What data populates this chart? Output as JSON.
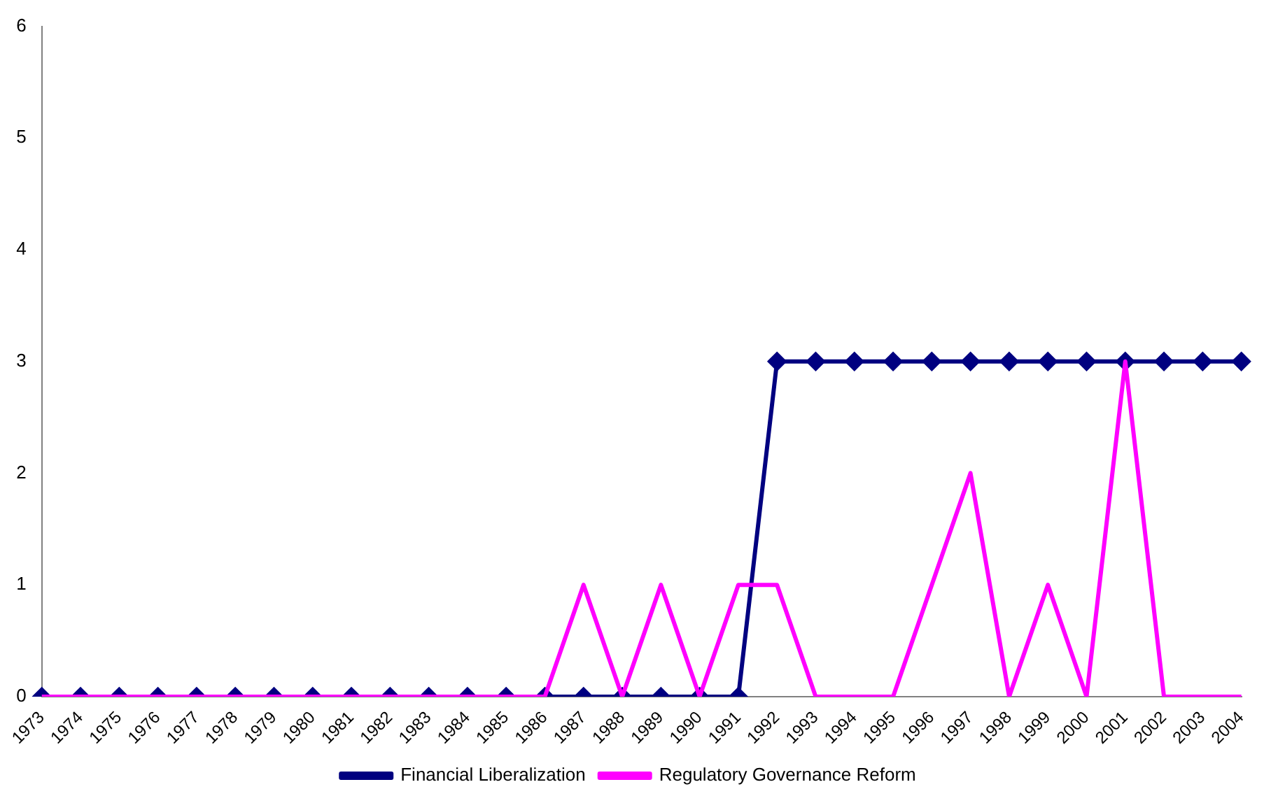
{
  "chart_data": {
    "type": "line",
    "categories": [
      "1973",
      "1974",
      "1975",
      "1976",
      "1977",
      "1978",
      "1979",
      "1980",
      "1981",
      "1982",
      "1983",
      "1984",
      "1985",
      "1986",
      "1987",
      "1988",
      "1989",
      "1990",
      "1991",
      "1992",
      "1993",
      "1994",
      "1995",
      "1996",
      "1997",
      "1998",
      "1999",
      "2000",
      "2001",
      "2002",
      "2003",
      "2004"
    ],
    "series": [
      {
        "name": "Financial Liberalization",
        "color": "#000080",
        "marker": "diamond",
        "values": [
          0,
          0,
          0,
          0,
          0,
          0,
          0,
          0,
          0,
          0,
          0,
          0,
          0,
          0,
          0,
          0,
          0,
          0,
          0,
          3,
          3,
          3,
          3,
          3,
          3,
          3,
          3,
          3,
          3,
          3,
          3,
          3
        ]
      },
      {
        "name": "Regulatory Governance Reform",
        "color": "#ff00ff",
        "marker": "none",
        "values": [
          0,
          0,
          0,
          0,
          0,
          0,
          0,
          0,
          0,
          0,
          0,
          0,
          0,
          0,
          1,
          0,
          1,
          0,
          1,
          1,
          0,
          0,
          0,
          1,
          2,
          0,
          1,
          0,
          3,
          0,
          0,
          0
        ]
      }
    ],
    "ylim": [
      0,
      6
    ],
    "yticks": [
      0,
      1,
      2,
      3,
      4,
      5,
      6
    ],
    "grid": false,
    "legend": "bottom"
  }
}
